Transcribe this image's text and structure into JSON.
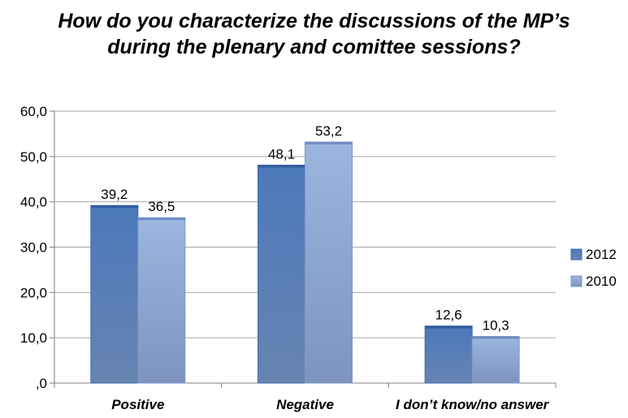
{
  "chart_data": {
    "type": "bar",
    "title": "How do you characterize the discussions of the MP’s during the plenary and comittee sessions?",
    "title_lines": [
      "How do you characterize the discussions of the MP’s",
      "during the plenary and comittee sessions?"
    ],
    "categories": [
      "Positive",
      "Negative",
      "I don’t know/no answer"
    ],
    "series": [
      {
        "name": "2012",
        "values": [
          39.2,
          48.1,
          12.6
        ],
        "labels": [
          "39,2",
          "48,1",
          "12,6"
        ],
        "color": "#4a75b5"
      },
      {
        "name": "2010",
        "values": [
          36.5,
          53.2,
          10.3
        ],
        "labels": [
          "36,5",
          "53,2",
          "10,3"
        ],
        "color": "#8fa8d6"
      }
    ],
    "ylim": [
      0,
      60
    ],
    "yticks": [
      0,
      10,
      20,
      30,
      40,
      50,
      60
    ],
    "ytick_labels": [
      ",0",
      "10,0",
      "20,0",
      "30,0",
      "40,0",
      "50,0",
      "60,0"
    ],
    "grid": true,
    "legend_position": "right"
  }
}
